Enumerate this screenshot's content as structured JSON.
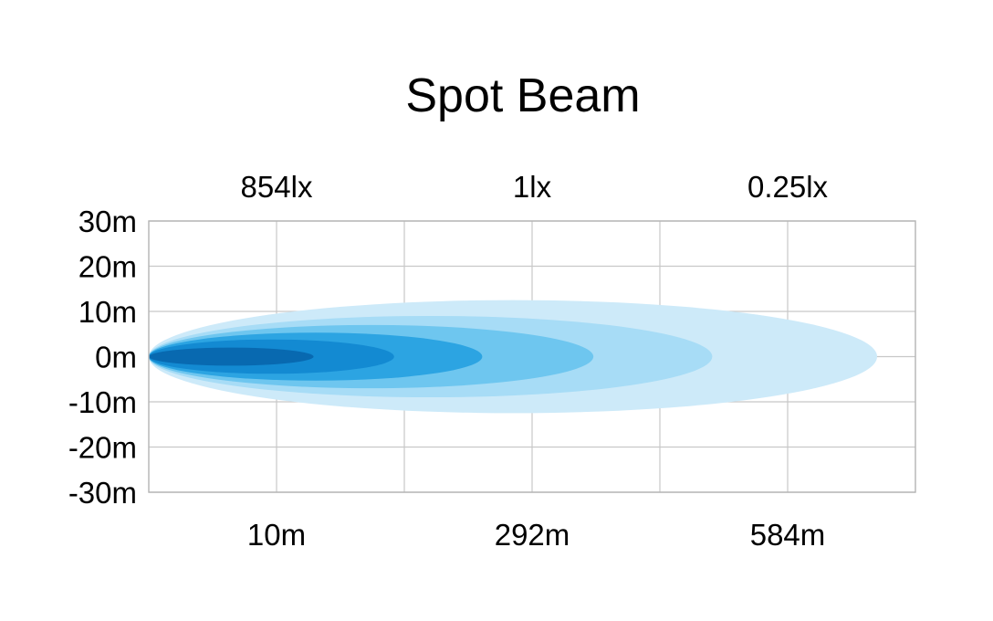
{
  "chart_data": {
    "type": "area",
    "title": "Spot Beam",
    "y_ticks": [
      "30m",
      "20m",
      "10m",
      "0m",
      "-10m",
      "-20m",
      "-30m"
    ],
    "top_labels": [
      "854lx",
      "1lx",
      "0.25lx"
    ],
    "bottom_labels": [
      "10m",
      "292m",
      "584m"
    ],
    "x_grid_divisions": 6,
    "ylim": [
      -30,
      30
    ],
    "grid": true,
    "beam_zones": [
      {
        "name": "zone-1",
        "reach_fraction": 0.95,
        "half_width_m": 12.5,
        "color": "#cdeaf9"
      },
      {
        "name": "zone-2",
        "reach_fraction": 0.735,
        "half_width_m": 9.0,
        "color": "#a7dcf6"
      },
      {
        "name": "zone-3",
        "reach_fraction": 0.58,
        "half_width_m": 7.0,
        "color": "#6ec6ef"
      },
      {
        "name": "zone-4",
        "reach_fraction": 0.435,
        "half_width_m": 5.3,
        "color": "#2ca4e2"
      },
      {
        "name": "zone-5",
        "reach_fraction": 0.32,
        "half_width_m": 3.8,
        "color": "#138ad2"
      },
      {
        "name": "zone-6",
        "reach_fraction": 0.215,
        "half_width_m": 2.0,
        "color": "#0869b0"
      }
    ]
  }
}
